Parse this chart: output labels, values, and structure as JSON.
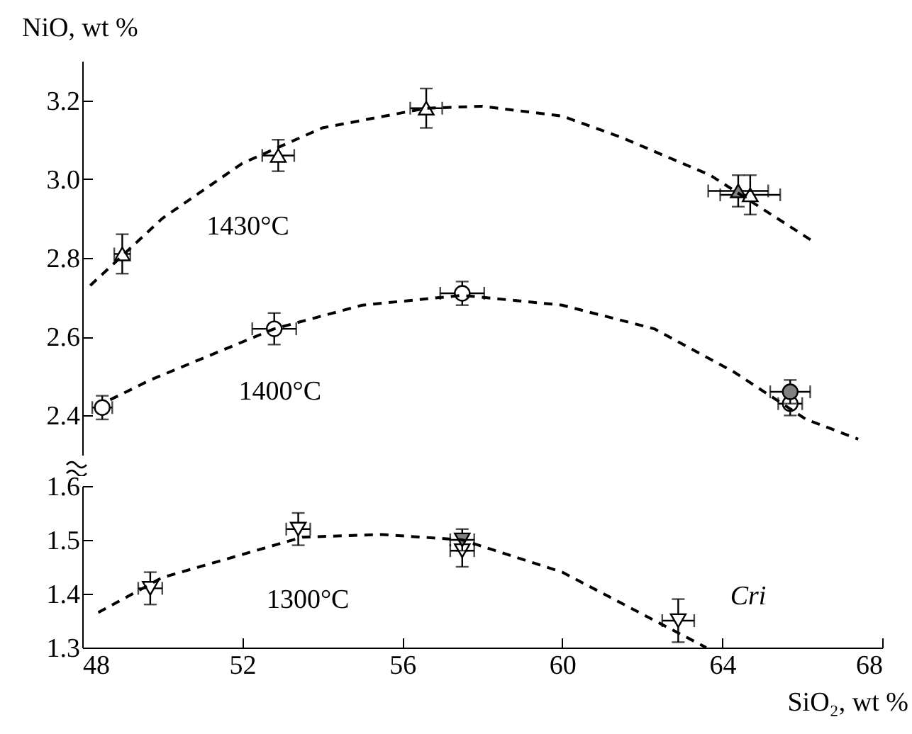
{
  "chart_data": [
    {
      "type": "scatter",
      "ylabel": "NiO, wt %",
      "xlim": [
        48,
        68
      ],
      "xticks": [
        48,
        52,
        56,
        60,
        64,
        68
      ],
      "ylim": [
        2.3,
        3.3
      ],
      "yticks": [
        2.4,
        2.6,
        2.8,
        {
          "value": 3,
          "label": "3.0"
        },
        3.2
      ],
      "tick_labels": "y",
      "grid": false,
      "series": [
        {
          "type": "scatter",
          "marker": "triangle",
          "color": "#ffffff",
          "x": [
            49.0,
            52.9,
            56.6,
            64.7
          ],
          "values": [
            2.81,
            3.06,
            3.18,
            2.96
          ],
          "errors": [
            0.05,
            0.04,
            0.05,
            0.05
          ],
          "xerrors": [
            0.2,
            0.4,
            0.4,
            0.75
          ]
        },
        {
          "type": "scatter",
          "marker": "triangle",
          "color": "#808080",
          "x": [
            64.4
          ],
          "values": [
            2.97
          ],
          "errors": [
            0.04
          ],
          "xerrors": [
            0.75
          ]
        },
        {
          "type": "scatter",
          "marker": "circle",
          "color": "#ffffff",
          "x": [
            48.5,
            52.8,
            57.5,
            65.7
          ],
          "values": [
            2.42,
            2.62,
            2.71,
            2.43
          ],
          "errors": [
            0.03,
            0.04,
            0.03,
            0.03
          ],
          "xerrors": [
            0.25,
            0.55,
            0.55,
            0.3
          ]
        },
        {
          "type": "scatter",
          "marker": "circle",
          "color": "#808080",
          "x": [
            65.7
          ],
          "values": [
            2.46
          ],
          "errors": [
            0.03
          ],
          "xerrors": [
            0.5
          ]
        },
        {
          "type": "line",
          "name": "1430°C",
          "line_style": "dashed",
          "color": "#000000",
          "x": [
            48.2,
            50,
            52,
            54,
            56.6,
            58,
            60,
            61.5,
            63.7,
            66.3
          ],
          "values": [
            2.73,
            2.9,
            3.04,
            3.13,
            3.18,
            3.185,
            3.16,
            3.105,
            3.01,
            2.84
          ]
        },
        {
          "type": "line",
          "name": "1400°C",
          "line_style": "dashed",
          "color": "#000000",
          "x": [
            48.7,
            49.7,
            52.8,
            55,
            57.5,
            60,
            62.3,
            64.3,
            66.1,
            67.4
          ],
          "values": [
            2.44,
            2.49,
            2.62,
            2.68,
            2.705,
            2.68,
            2.62,
            2.51,
            2.39,
            2.34
          ]
        }
      ]
    },
    {
      "type": "scatter",
      "xlabel": "SiO₂, wt %",
      "xlim": [
        48,
        68
      ],
      "xticks": [
        48,
        52,
        56,
        60,
        64,
        68
      ],
      "ylim": [
        1.3,
        1.6
      ],
      "yticks": [
        1.3,
        1.4,
        1.5,
        1.6
      ],
      "grid": false,
      "series": [
        {
          "type": "scatter",
          "marker": "triangle-down",
          "color": "#ffffff",
          "x": [
            49.7,
            53.4,
            57.5,
            62.9
          ],
          "values": [
            1.41,
            1.52,
            1.48,
            1.35
          ],
          "errors": [
            0.03,
            0.03,
            0.03,
            0.04
          ],
          "xerrors": [
            0.3,
            0.3,
            0.3,
            0.4
          ]
        },
        {
          "type": "scatter",
          "marker": "triangle-down",
          "color": "#808080",
          "x": [
            57.5
          ],
          "values": [
            1.5
          ],
          "errors": [
            0.02
          ],
          "xerrors": [
            0.3
          ]
        },
        {
          "type": "line",
          "name": "1300°C",
          "line_style": "dashed",
          "color": "#000000",
          "x": [
            48.4,
            50,
            53.5,
            55.5,
            57.5,
            60,
            63.6
          ],
          "values": [
            1.365,
            1.43,
            1.505,
            1.51,
            1.5,
            1.44,
            1.3
          ]
        }
      ],
      "annotations": [
        "Cri"
      ]
    }
  ]
}
